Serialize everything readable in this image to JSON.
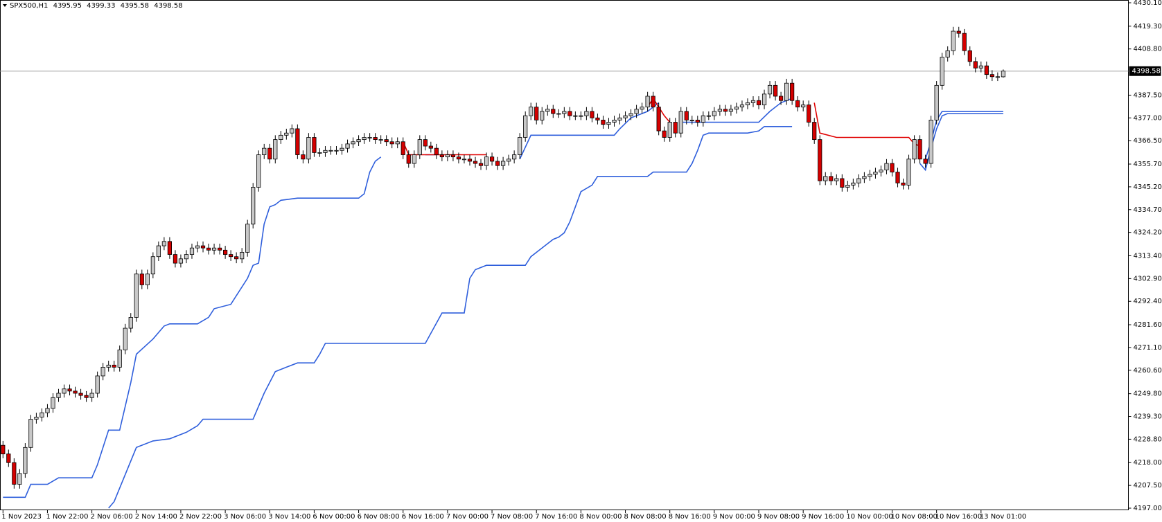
{
  "chart_data": {
    "type": "candlestick",
    "header": {
      "symbol": "SPX500,H1",
      "values": [
        4395.95,
        4399.33,
        4395.58,
        4398.58
      ]
    },
    "last_price": 4398.58,
    "up_color": "#c8c8c8",
    "down_color": "#d40000",
    "ylim": [
      4197,
      4430.1
    ],
    "yticks": [
      {
        "value": 4197,
        "label": "4197.00"
      },
      {
        "value": 4207.5,
        "label": "4207.50"
      },
      {
        "value": 4218,
        "label": "4218.00"
      },
      {
        "value": 4228.8,
        "label": "4228.80"
      },
      {
        "value": 4239.3,
        "label": "4239.30"
      },
      {
        "value": 4249.8,
        "label": "4249.80"
      },
      {
        "value": 4260.6,
        "label": "4260.60"
      },
      {
        "value": 4271.1,
        "label": "4271.10"
      },
      {
        "value": 4281.6,
        "label": "4281.60"
      },
      {
        "value": 4292.4,
        "label": "4292.40"
      },
      {
        "value": 4302.9,
        "label": "4302.90"
      },
      {
        "value": 4313.4,
        "label": "4313.40"
      },
      {
        "value": 4324.2,
        "label": "4324.20"
      },
      {
        "value": 4334.7,
        "label": "4334.70"
      },
      {
        "value": 4345.2,
        "label": "4345.20"
      },
      {
        "value": 4355.7,
        "label": "4355.70"
      },
      {
        "value": 4366.5,
        "label": "4366.50"
      },
      {
        "value": 4377,
        "label": "4377.00"
      },
      {
        "value": 4387.5,
        "label": "4387.50"
      },
      {
        "value": 4408.8,
        "label": "4408.80"
      },
      {
        "value": 4419.3,
        "label": "4419.30"
      },
      {
        "value": 4430.1,
        "label": "4430.10"
      }
    ],
    "categories": [
      "1 Nov 2023",
      null,
      null,
      null,
      null,
      null,
      null,
      null,
      "1 Nov 22:00",
      null,
      null,
      null,
      null,
      null,
      null,
      null,
      "2 Nov 06:00",
      null,
      null,
      null,
      null,
      null,
      null,
      null,
      "2 Nov 14:00",
      null,
      null,
      null,
      null,
      null,
      null,
      null,
      "2 Nov 22:00",
      null,
      null,
      null,
      null,
      null,
      null,
      null,
      "3 Nov 06:00",
      null,
      null,
      null,
      null,
      null,
      null,
      null,
      "3 Nov 14:00",
      null,
      null,
      null,
      null,
      null,
      null,
      null,
      "6 Nov 00:00",
      null,
      null,
      null,
      null,
      null,
      null,
      null,
      "6 Nov 08:00",
      null,
      null,
      null,
      null,
      null,
      null,
      null,
      "6 Nov 16:00",
      null,
      null,
      null,
      null,
      null,
      null,
      null,
      "7 Nov 00:00",
      null,
      null,
      null,
      null,
      null,
      null,
      null,
      "7 Nov 08:00",
      null,
      null,
      null,
      null,
      null,
      null,
      null,
      "7 Nov 16:00",
      null,
      null,
      null,
      null,
      null,
      null,
      null,
      "8 Nov 00:00",
      null,
      null,
      null,
      null,
      null,
      null,
      null,
      "8 Nov 08:00",
      null,
      null,
      null,
      null,
      null,
      null,
      null,
      "8 Nov 16:00",
      null,
      null,
      null,
      null,
      null,
      null,
      null,
      "9 Nov 00:00",
      null,
      null,
      null,
      null,
      null,
      null,
      null,
      "9 Nov 08:00",
      null,
      null,
      null,
      null,
      null,
      null,
      null,
      "9 Nov 16:00",
      null,
      null,
      null,
      null,
      null,
      null,
      null,
      "10 Nov 00:00",
      null,
      null,
      null,
      null,
      null,
      null,
      null,
      "10 Nov 08:00",
      null,
      null,
      null,
      null,
      null,
      null,
      null,
      "10 Nov 16:00",
      null,
      null,
      null,
      null,
      null,
      null,
      null,
      "13 Nov 01:00",
      null,
      null,
      null,
      null
    ],
    "open": [
      4226,
      4222,
      4218,
      4208,
      4213,
      4225,
      4238,
      4239,
      4241,
      4243,
      4248,
      4250,
      4252,
      4251,
      4250,
      4249,
      4248,
      4250,
      4258,
      4262,
      4263,
      4262,
      4270,
      4280,
      4285,
      4305,
      4300,
      4305,
      4313,
      4318,
      4320,
      4314,
      4310,
      4312,
      4314,
      4317,
      4318,
      4317,
      4316,
      4317,
      4316,
      4314,
      4313,
      4312,
      4315,
      4328,
      4345,
      4360,
      4363,
      4358,
      4367,
      4369,
      4370,
      4372,
      4360,
      4358,
      4368,
      4361,
      4361,
      4362,
      4362,
      4362,
      4363,
      4365,
      4366,
      4367,
      4368,
      4368,
      4367,
      4367,
      4366,
      4365,
      4366,
      4360,
      4356,
      4360,
      4367,
      4364,
      4363,
      4360,
      4359,
      4360,
      4359,
      4358,
      4358,
      4357,
      4356,
      4355,
      4359,
      4357,
      4355,
      4357,
      4358,
      4360,
      4368,
      4378,
      4382,
      4376,
      4380,
      4381,
      4379,
      4379,
      4380,
      4378,
      4378,
      4378,
      4380,
      4377,
      4376,
      4374,
      4375,
      4376,
      4377,
      4378,
      4379,
      4381,
      4382,
      4387,
      4382,
      4371,
      4368,
      4375,
      4370,
      4380,
      4376,
      4376,
      4375,
      4378,
      4378,
      4380,
      4381,
      4380,
      4381,
      4382,
      4383,
      4384,
      4385,
      4383,
      4388,
      4392,
      4387,
      4385,
      4393,
      4385,
      4382,
      4383,
      4375,
      4367,
      4348,
      4350,
      4348,
      4349,
      4345,
      4346,
      4347,
      4349,
      4350,
      4351,
      4352,
      4353,
      4356,
      4352,
      4347,
      4346,
      4358,
      4367,
      4358,
      4356,
      4376,
      4392,
      4405,
      4408,
      4417,
      4416,
      4408,
      4403,
      4400,
      4401,
      4397,
      4396,
      4395.95
    ],
    "high": [
      4228,
      4224,
      4220,
      4215,
      4227,
      4240,
      4241,
      4243,
      4245,
      4250,
      4252,
      4254,
      4254,
      4253,
      4252,
      4251,
      4252,
      4260,
      4264,
      4265,
      4265,
      4272,
      4282,
      4287,
      4307,
      4307,
      4307,
      4315,
      4320,
      4322,
      4322,
      4316,
      4314,
      4316,
      4319,
      4320,
      4320,
      4319,
      4319,
      4319,
      4318,
      4316,
      4315,
      4317,
      4330,
      4347,
      4362,
      4365,
      4365,
      4369,
      4371,
      4372,
      4374,
      4374,
      4362,
      4370,
      4370,
      4363,
      4364,
      4364,
      4364,
      4365,
      4367,
      4368,
      4369,
      4370,
      4370,
      4370,
      4369,
      4369,
      4368,
      4368,
      4368,
      4362,
      4362,
      4369,
      4369,
      4366,
      4365,
      4362,
      4362,
      4362,
      4361,
      4360,
      4360,
      4359,
      4358,
      4361,
      4361,
      4359,
      4359,
      4360,
      4362,
      4370,
      4380,
      4384,
      4384,
      4382,
      4383,
      4383,
      4381,
      4382,
      4382,
      4380,
      4380,
      4382,
      4382,
      4379,
      4378,
      4377,
      4378,
      4379,
      4380,
      4381,
      4383,
      4384,
      4389,
      4389,
      4384,
      4373,
      4377,
      4377,
      4382,
      4382,
      4378,
      4378,
      4380,
      4380,
      4382,
      4383,
      4383,
      4383,
      4384,
      4385,
      4386,
      4387,
      4387,
      4390,
      4394,
      4394,
      4389,
      4395,
      4395,
      4387,
      4385,
      4385,
      4377,
      4369,
      4352,
      4352,
      4351,
      4351,
      4348,
      4349,
      4351,
      4352,
      4353,
      4354,
      4355,
      4358,
      4358,
      4354,
      4349,
      4360,
      4369,
      4369,
      4360,
      4378,
      4394,
      4407,
      4410,
      4419,
      4419,
      4418,
      4410,
      4405,
      4403,
      4403,
      4399,
      4398,
      4399.33
    ],
    "low": [
      4220,
      4216,
      4206,
      4206,
      4211,
      4223,
      4236,
      4237,
      4239,
      4241,
      4246,
      4248,
      4249,
      4248,
      4247,
      4246,
      4246,
      4248,
      4256,
      4260,
      4260,
      4260,
      4268,
      4278,
      4283,
      4298,
      4298,
      4303,
      4311,
      4316,
      4312,
      4308,
      4308,
      4310,
      4312,
      4315,
      4315,
      4314,
      4314,
      4314,
      4312,
      4311,
      4310,
      4310,
      4313,
      4326,
      4343,
      4358,
      4356,
      4356,
      4365,
      4367,
      4368,
      4358,
      4356,
      4356,
      4359,
      4359,
      4359,
      4360,
      4360,
      4360,
      4361,
      4363,
      4364,
      4365,
      4366,
      4365,
      4365,
      4364,
      4363,
      4363,
      4358,
      4354,
      4354,
      4358,
      4362,
      4361,
      4358,
      4357,
      4357,
      4357,
      4356,
      4356,
      4355,
      4354,
      4353,
      4353,
      4355,
      4353,
      4353,
      4355,
      4356,
      4358,
      4366,
      4376,
      4374,
      4374,
      4378,
      4377,
      4377,
      4377,
      4376,
      4376,
      4376,
      4376,
      4375,
      4374,
      4372,
      4372,
      4373,
      4374,
      4375,
      4376,
      4377,
      4379,
      4380,
      4380,
      4369,
      4366,
      4366,
      4368,
      4368,
      4374,
      4374,
      4373,
      4373,
      4376,
      4376,
      4378,
      4378,
      4378,
      4379,
      4380,
      4381,
      4382,
      4381,
      4381,
      4386,
      4385,
      4383,
      4383,
      4383,
      4380,
      4380,
      4373,
      4365,
      4346,
      4346,
      4346,
      4346,
      4343,
      4343,
      4344,
      4345,
      4347,
      4348,
      4349,
      4350,
      4351,
      4350,
      4345,
      4344,
      4344,
      4356,
      4356,
      4354,
      4354,
      4374,
      4390,
      4403,
      4406,
      4414,
      4406,
      4401,
      4398,
      4398,
      4395,
      4394,
      4394,
      4395.58
    ],
    "close": [
      4222,
      4218,
      4208,
      4213,
      4225,
      4238,
      4239,
      4241,
      4243,
      4248,
      4250,
      4252,
      4251,
      4250,
      4249,
      4248,
      4250,
      4258,
      4262,
      4263,
      4262,
      4270,
      4280,
      4285,
      4305,
      4300,
      4305,
      4313,
      4318,
      4320,
      4314,
      4310,
      4312,
      4314,
      4317,
      4318,
      4317,
      4316,
      4317,
      4316,
      4314,
      4313,
      4312,
      4315,
      4328,
      4345,
      4360,
      4363,
      4358,
      4367,
      4369,
      4370,
      4372,
      4360,
      4358,
      4368,
      4361,
      4361,
      4362,
      4362,
      4362,
      4363,
      4365,
      4366,
      4367,
      4368,
      4368,
      4367,
      4367,
      4366,
      4365,
      4366,
      4360,
      4356,
      4360,
      4367,
      4364,
      4363,
      4360,
      4359,
      4360,
      4359,
      4358,
      4358,
      4357,
      4356,
      4355,
      4359,
      4357,
      4355,
      4357,
      4358,
      4360,
      4368,
      4378,
      4382,
      4376,
      4380,
      4381,
      4379,
      4379,
      4380,
      4378,
      4378,
      4378,
      4380,
      4377,
      4376,
      4374,
      4375,
      4376,
      4377,
      4378,
      4379,
      4381,
      4382,
      4387,
      4382,
      4371,
      4368,
      4375,
      4370,
      4380,
      4376,
      4376,
      4375,
      4378,
      4378,
      4380,
      4381,
      4380,
      4381,
      4382,
      4383,
      4384,
      4385,
      4383,
      4388,
      4392,
      4387,
      4385,
      4393,
      4385,
      4382,
      4383,
      4375,
      4367,
      4348,
      4350,
      4348,
      4349,
      4345,
      4346,
      4347,
      4349,
      4350,
      4351,
      4352,
      4353,
      4356,
      4352,
      4347,
      4346,
      4358,
      4367,
      4358,
      4356,
      4376,
      4392,
      4405,
      4408,
      4417,
      4416,
      4408,
      4403,
      4400,
      4401,
      4397,
      4396,
      4396,
      4398.58
    ],
    "series": [
      {
        "color": "#2f5fdc",
        "x": [
          0,
          4,
          5,
          8,
          10,
          16,
          17,
          19,
          21,
          23,
          24,
          27,
          29,
          30,
          35,
          37,
          38,
          41,
          42,
          44,
          45,
          46,
          47,
          48,
          49,
          50,
          53,
          64,
          65,
          66,
          67,
          68,
          null,
          76,
          78,
          null,
          93,
          95,
          110,
          111,
          113,
          116,
          118,
          null,
          122,
          136,
          138,
          140,
          142,
          null,
          165,
          166,
          167,
          168,
          169,
          170,
          180
        ],
        "values": [
          4202,
          4202,
          4208,
          4208,
          4211,
          4211,
          4217,
          4233,
          4233,
          4255,
          4268,
          4275,
          4281,
          4282,
          4282,
          4285,
          4289,
          4291,
          4295,
          4303,
          4309,
          4310,
          4328,
          4336,
          4337,
          4339,
          4340,
          4340,
          4342,
          4352,
          4357,
          4359,
          null,
          4360,
          4360,
          null,
          4358,
          4369,
          4369,
          4372,
          4377,
          4380,
          4384,
          null,
          4375,
          4375,
          4380,
          4384,
          4386,
          null,
          4356,
          4353,
          4363,
          4372,
          4378,
          4379,
          4379
        ]
      },
      {
        "color": "#2f5fdc",
        "x": [
          19,
          20,
          24,
          27,
          30,
          33,
          35,
          36,
          45,
          47,
          49,
          51,
          53,
          56,
          57,
          58,
          76,
          79,
          83,
          84,
          85,
          87,
          94,
          95,
          97,
          99,
          100,
          101,
          102,
          103,
          104,
          106,
          107,
          116,
          117,
          123,
          124,
          125,
          126,
          127,
          134,
          136,
          137,
          142,
          null,
          166,
          167,
          168,
          169,
          180
        ],
        "values": [
          4197,
          4200,
          4225,
          4228,
          4229,
          4232,
          4235,
          4238,
          4238,
          4250,
          4260,
          4262,
          4264,
          4264,
          4268,
          4273,
          4273,
          4287,
          4287,
          4303,
          4307,
          4309,
          4309,
          4313,
          4317,
          4321,
          4322,
          4324,
          4329,
          4336,
          4343,
          4346,
          4350,
          4350,
          4352,
          4352,
          4356,
          4362,
          4369,
          4370,
          4370,
          4371,
          4373,
          4373,
          null,
          4358,
          4366,
          4376,
          4380,
          4380
        ]
      },
      {
        "color": "#e00000",
        "x": [
          72,
          73,
          76,
          87,
          null,
          116,
          117,
          119,
          120,
          null,
          146,
          147,
          150,
          163,
          164,
          165
        ],
        "values": [
          4366,
          4360,
          4360,
          4360,
          null,
          4382,
          4386,
          4378,
          4375,
          null,
          4384,
          4370,
          4368,
          4368,
          4365,
          4364
        ]
      }
    ]
  }
}
